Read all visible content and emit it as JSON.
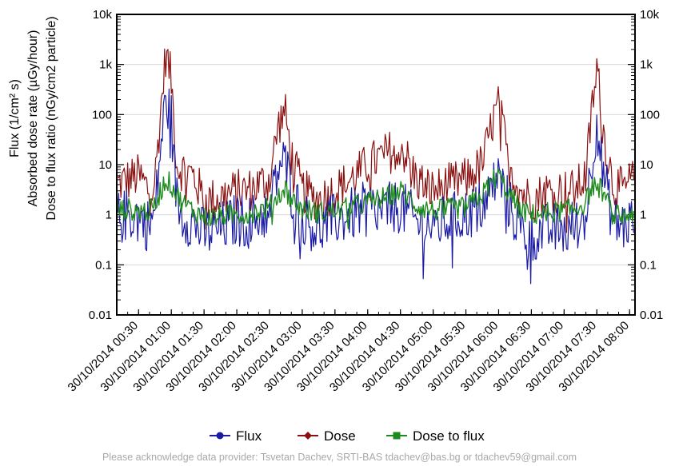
{
  "chart_data": {
    "type": "line",
    "y_scale": "log",
    "ylim": [
      0.01,
      10000
    ],
    "y_ticks": [
      "0.01",
      "0.1",
      "1",
      "10",
      "100",
      "1k",
      "10k"
    ],
    "ylabel_lines": [
      "Flux (1/cm² s)",
      "Absorbed dose rate (µGy/hour)",
      "Dose to flux ratio (nGy/cm2 particle)"
    ],
    "x_ticks": [
      "30/10/2014 00:30",
      "30/10/2014 01:00",
      "30/10/2014 01:30",
      "30/10/2014 02:00",
      "30/10/2014 02:30",
      "30/10/2014 03:00",
      "30/10/2014 03:30",
      "30/10/2014 04:00",
      "30/10/2014 04:30",
      "30/10/2014 05:00",
      "30/10/2014 05:30",
      "30/10/2014 06:00",
      "30/10/2014 06:30",
      "30/10/2014 07:00",
      "30/10/2014 07:30",
      "30/10/2014 08:00"
    ],
    "xlim": [
      "30/10/2014 00:10",
      "30/10/2014 08:05"
    ],
    "grid": true,
    "legend_position": "bottom",
    "series": [
      {
        "name": "Flux",
        "color": "#1a1aa6",
        "marker": "circle",
        "x": [
          "30/10/2014 00:10",
          "30/10/2014 00:20",
          "30/10/2014 00:30",
          "30/10/2014 00:40",
          "30/10/2014 00:45",
          "30/10/2014 00:50",
          "30/10/2014 00:55",
          "30/10/2014 01:00",
          "30/10/2014 01:05",
          "30/10/2014 01:10",
          "30/10/2014 01:20",
          "30/10/2014 01:30",
          "30/10/2014 01:40",
          "30/10/2014 01:50",
          "30/10/2014 02:00",
          "30/10/2014 02:10",
          "30/10/2014 02:20",
          "30/10/2014 02:30",
          "30/10/2014 02:38",
          "30/10/2014 02:44",
          "30/10/2014 02:50",
          "30/10/2014 03:00",
          "30/10/2014 03:15",
          "30/10/2014 03:30",
          "30/10/2014 03:45",
          "30/10/2014 04:00",
          "30/10/2014 04:15",
          "30/10/2014 04:30",
          "30/10/2014 04:45",
          "30/10/2014 05:00",
          "30/10/2014 05:15",
          "30/10/2014 05:30",
          "30/10/2014 05:45",
          "30/10/2014 05:55",
          "30/10/2014 06:00",
          "30/10/2014 06:10",
          "30/10/2014 06:20",
          "30/10/2014 06:30",
          "30/10/2014 06:45",
          "30/10/2014 07:00",
          "30/10/2014 07:10",
          "30/10/2014 07:20",
          "30/10/2014 07:25",
          "30/10/2014 07:30",
          "30/10/2014 07:35",
          "30/10/2014 07:45",
          "30/10/2014 07:55",
          "30/10/2014 08:05"
        ],
        "y": [
          0.8,
          1.0,
          0.9,
          0.6,
          1.0,
          20,
          200,
          80,
          2,
          1.0,
          0.7,
          0.4,
          0.5,
          0.6,
          0.8,
          0.7,
          0.9,
          1.2,
          8,
          12,
          3,
          0.9,
          0.5,
          0.8,
          1.0,
          1.4,
          1.2,
          1.5,
          0.7,
          0.6,
          0.8,
          1.0,
          1.5,
          4,
          6,
          1.5,
          0.5,
          0.4,
          0.5,
          0.5,
          0.6,
          1.0,
          10,
          80,
          8,
          0.7,
          0.6,
          0.9
        ]
      },
      {
        "name": "Dose",
        "color": "#8b1010",
        "marker": "diamond",
        "x": [
          "30/10/2014 00:10",
          "30/10/2014 00:20",
          "30/10/2014 00:30",
          "30/10/2014 00:40",
          "30/10/2014 00:45",
          "30/10/2014 00:50",
          "30/10/2014 00:55",
          "30/10/2014 01:00",
          "30/10/2014 01:05",
          "30/10/2014 01:10",
          "30/10/2014 01:20",
          "30/10/2014 01:30",
          "30/10/2014 01:40",
          "30/10/2014 01:50",
          "30/10/2014 02:00",
          "30/10/2014 02:10",
          "30/10/2014 02:20",
          "30/10/2014 02:30",
          "30/10/2014 02:38",
          "30/10/2014 02:44",
          "30/10/2014 02:50",
          "30/10/2014 03:00",
          "30/10/2014 03:15",
          "30/10/2014 03:30",
          "30/10/2014 03:45",
          "30/10/2014 04:00",
          "30/10/2014 04:15",
          "30/10/2014 04:30",
          "30/10/2014 04:45",
          "30/10/2014 05:00",
          "30/10/2014 05:15",
          "30/10/2014 05:30",
          "30/10/2014 05:45",
          "30/10/2014 05:55",
          "30/10/2014 06:00",
          "30/10/2014 06:10",
          "30/10/2014 06:20",
          "30/10/2014 06:30",
          "30/10/2014 06:45",
          "30/10/2014 07:00",
          "30/10/2014 07:10",
          "30/10/2014 07:20",
          "30/10/2014 07:25",
          "30/10/2014 07:30",
          "30/10/2014 07:35",
          "30/10/2014 07:45",
          "30/10/2014 07:55",
          "30/10/2014 08:05"
        ],
        "y": [
          4,
          5,
          6,
          3,
          5,
          100,
          1700,
          500,
          10,
          8,
          6,
          2,
          2,
          2.5,
          3,
          3,
          4,
          5,
          60,
          120,
          15,
          3,
          2,
          3,
          5,
          10,
          15,
          25,
          5,
          3,
          4,
          5,
          10,
          80,
          150,
          10,
          3,
          2,
          3,
          3,
          3,
          6,
          100,
          1100,
          60,
          4,
          3,
          6
        ]
      },
      {
        "name": "Dose to flux",
        "color": "#1e8b1e",
        "marker": "square",
        "x": [
          "30/10/2014 00:10",
          "30/10/2014 00:20",
          "30/10/2014 00:30",
          "30/10/2014 00:40",
          "30/10/2014 00:45",
          "30/10/2014 00:50",
          "30/10/2014 00:55",
          "30/10/2014 01:00",
          "30/10/2014 01:05",
          "30/10/2014 01:10",
          "30/10/2014 01:20",
          "30/10/2014 01:30",
          "30/10/2014 01:40",
          "30/10/2014 01:50",
          "30/10/2014 02:00",
          "30/10/2014 02:10",
          "30/10/2014 02:20",
          "30/10/2014 02:30",
          "30/10/2014 02:38",
          "30/10/2014 02:44",
          "30/10/2014 02:50",
          "30/10/2014 03:00",
          "30/10/2014 03:15",
          "30/10/2014 03:30",
          "30/10/2014 03:45",
          "30/10/2014 04:00",
          "30/10/2014 04:15",
          "30/10/2014 04:30",
          "30/10/2014 04:45",
          "30/10/2014 05:00",
          "30/10/2014 05:15",
          "30/10/2014 05:30",
          "30/10/2014 05:45",
          "30/10/2014 05:55",
          "30/10/2014 06:00",
          "30/10/2014 06:10",
          "30/10/2014 06:20",
          "30/10/2014 06:30",
          "30/10/2014 06:45",
          "30/10/2014 07:00",
          "30/10/2014 07:10",
          "30/10/2014 07:20",
          "30/10/2014 07:25",
          "30/10/2014 07:30",
          "30/10/2014 07:35",
          "30/10/2014 07:45",
          "30/10/2014 07:55",
          "30/10/2014 08:05"
        ],
        "y": [
          1.2,
          1.3,
          1.2,
          1.2,
          1.5,
          3,
          5,
          4,
          2.5,
          1.8,
          1.2,
          0.9,
          0.9,
          1.0,
          1.0,
          1.1,
          1.2,
          1.4,
          2.5,
          3.5,
          2.0,
          1.3,
          1.1,
          1.2,
          1.4,
          1.8,
          2.2,
          3,
          1.5,
          1.2,
          1.3,
          1.4,
          2.5,
          5,
          6,
          2.5,
          1.2,
          1.0,
          1.1,
          1.2,
          1.3,
          1.8,
          3.5,
          4,
          3,
          1.0,
          0.9,
          1.2
        ]
      }
    ]
  },
  "footer": "Please acknowledge data provider: Tsvetan Dachev, SRTI-BAS tdachev@bas.bg or tdachev59@gmail.com"
}
